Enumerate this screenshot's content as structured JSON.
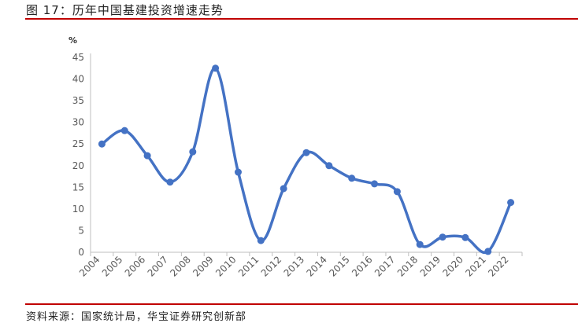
{
  "header": {
    "title": "图 17：历年中国基建投资增速走势"
  },
  "footer": {
    "source": "资料来源：国家统计局，华宝证券研究创新部"
  },
  "colors": {
    "series": "#4472C4",
    "rule": "#C00000"
  },
  "chart_data": {
    "type": "line",
    "title": "",
    "unit_label": "%",
    "x": [
      "2004",
      "2005",
      "2006",
      "2007",
      "2008",
      "2009",
      "2010",
      "2011",
      "2012",
      "2013",
      "2014",
      "2015",
      "2016",
      "2017",
      "2018",
      "2019",
      "2020",
      "2021",
      "2022"
    ],
    "values": [
      25.0,
      28.1,
      22.3,
      16.2,
      23.2,
      42.5,
      18.5,
      2.7,
      14.7,
      23.0,
      20.0,
      17.1,
      15.8,
      14.0,
      1.8,
      3.5,
      3.4,
      0.2,
      11.5
    ],
    "yticks": [
      0,
      5,
      10,
      15,
      20,
      25,
      30,
      35,
      40,
      45
    ],
    "ylim": [
      0,
      45
    ],
    "grid": false,
    "smooth": true,
    "markers": true
  }
}
